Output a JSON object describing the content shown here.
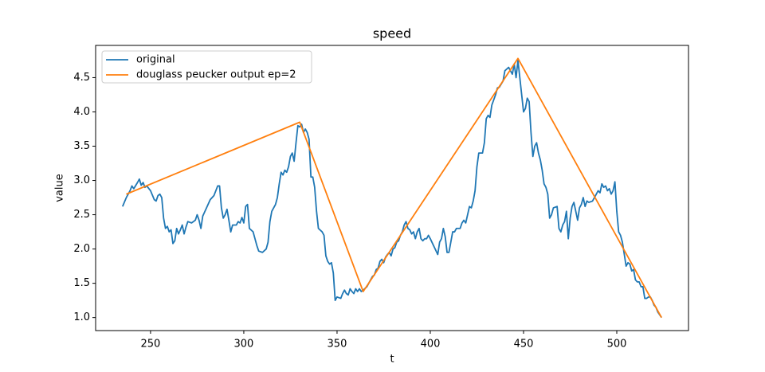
{
  "chart_data": {
    "type": "line",
    "title": "speed",
    "xlabel": "t",
    "ylabel": "value",
    "xlim": [
      220.55,
      538.45
    ],
    "ylim": [
      0.81,
      4.97
    ],
    "xticks": [
      250,
      300,
      350,
      400,
      450,
      500
    ],
    "yticks": [
      {
        "value": 1,
        "label": "1.0"
      },
      1.5,
      {
        "value": 2,
        "label": "2.0"
      },
      2.5,
      {
        "value": 3,
        "label": "3.0"
      },
      3.5,
      {
        "value": 4,
        "label": "4.0"
      },
      4.5
    ],
    "legend": "upper left",
    "grid": false,
    "series": [
      {
        "name": "original",
        "color": "#1f77b4",
        "x": [
          235,
          237,
          239,
          240,
          241,
          243,
          244,
          245,
          246,
          247,
          248,
          250,
          252,
          253,
          254,
          255,
          256,
          257,
          258,
          259,
          260,
          261,
          262,
          263,
          264,
          265,
          266,
          267,
          268,
          269,
          270,
          272,
          274,
          275,
          276,
          277,
          278,
          280,
          282,
          284,
          286,
          287,
          288,
          289,
          290,
          291,
          292,
          293,
          294,
          296,
          297,
          298,
          299,
          300,
          301,
          302,
          303,
          305,
          306,
          307,
          308,
          310,
          312,
          313,
          314,
          315,
          317,
          318,
          319,
          320,
          321,
          322,
          323,
          324,
          325,
          326,
          327,
          328,
          329,
          330,
          331,
          332,
          333,
          334,
          335,
          336,
          337,
          338,
          339,
          340,
          342,
          343,
          344,
          345,
          346,
          347,
          348,
          349,
          350,
          352,
          353,
          354,
          355,
          356,
          357,
          358,
          359,
          360,
          361,
          362,
          363,
          364,
          366,
          368,
          369,
          370,
          371,
          372,
          373,
          374,
          375,
          376,
          377,
          378,
          379,
          380,
          381,
          382,
          383,
          384,
          385,
          386,
          387,
          388,
          389,
          390,
          391,
          392,
          393,
          394,
          395,
          396,
          397,
          398,
          399,
          400,
          404,
          405,
          406,
          407,
          408,
          409,
          410,
          411,
          412,
          413,
          414,
          416,
          417,
          418,
          419,
          421,
          422,
          423,
          424,
          425,
          426,
          428,
          429,
          430,
          431,
          432,
          433,
          435,
          436,
          437,
          439,
          440,
          442,
          443,
          444,
          445,
          446,
          447,
          448,
          450,
          451,
          452,
          453,
          454,
          455,
          456,
          457,
          458,
          459,
          460,
          461,
          462,
          463,
          464,
          465,
          466,
          468,
          469,
          470,
          471,
          472,
          473,
          474,
          475,
          476,
          477,
          479,
          480,
          481,
          482,
          483,
          484,
          485,
          487,
          488,
          490,
          491,
          492,
          493,
          494,
          495,
          496,
          497,
          498,
          499,
          500,
          501,
          502,
          503,
          505,
          506,
          507,
          508,
          509,
          510,
          511,
          512,
          513,
          514,
          515,
          516,
          517,
          518,
          519,
          520,
          521,
          522,
          524
        ],
        "values": [
          2.62,
          2.75,
          2.85,
          2.92,
          2.88,
          2.97,
          3.02,
          2.93,
          2.97,
          2.9,
          2.92,
          2.85,
          2.72,
          2.7,
          2.78,
          2.8,
          2.75,
          2.45,
          2.3,
          2.33,
          2.25,
          2.28,
          2.08,
          2.12,
          2.3,
          2.22,
          2.28,
          2.35,
          2.22,
          2.32,
          2.4,
          2.38,
          2.42,
          2.5,
          2.42,
          2.3,
          2.48,
          2.6,
          2.72,
          2.78,
          2.92,
          2.92,
          2.6,
          2.45,
          2.5,
          2.58,
          2.42,
          2.25,
          2.35,
          2.35,
          2.4,
          2.38,
          2.46,
          2.38,
          2.62,
          2.65,
          2.3,
          2.25,
          2.15,
          2.05,
          1.97,
          1.95,
          2.0,
          2.1,
          2.4,
          2.55,
          2.65,
          2.75,
          2.95,
          3.12,
          3.08,
          3.15,
          3.12,
          3.2,
          3.35,
          3.4,
          3.28,
          3.55,
          3.8,
          3.78,
          3.82,
          3.7,
          3.75,
          3.7,
          3.6,
          3.05,
          3.05,
          2.9,
          2.55,
          2.3,
          2.25,
          2.2,
          1.9,
          1.82,
          1.78,
          1.8,
          1.65,
          1.25,
          1.3,
          1.28,
          1.35,
          1.4,
          1.35,
          1.33,
          1.42,
          1.38,
          1.35,
          1.42,
          1.38,
          1.42,
          1.38,
          1.4,
          1.45,
          1.55,
          1.6,
          1.62,
          1.7,
          1.72,
          1.82,
          1.85,
          1.8,
          1.88,
          1.92,
          1.95,
          1.9,
          2.0,
          2.02,
          2.1,
          2.12,
          2.2,
          2.25,
          2.35,
          2.4,
          2.3,
          2.28,
          2.22,
          2.25,
          2.15,
          2.25,
          2.3,
          2.15,
          2.12,
          2.15,
          2.15,
          2.2,
          2.15,
          1.92,
          2.1,
          2.15,
          2.3,
          2.18,
          1.95,
          1.95,
          2.1,
          2.25,
          2.25,
          2.3,
          2.3,
          2.38,
          2.42,
          2.38,
          2.62,
          2.6,
          2.7,
          2.85,
          3.2,
          3.4,
          3.4,
          3.55,
          3.9,
          3.95,
          3.92,
          4.1,
          4.25,
          4.35,
          4.36,
          4.45,
          4.6,
          4.65,
          4.6,
          4.55,
          4.7,
          4.5,
          4.75,
          4.5,
          4.0,
          4.05,
          4.2,
          4.15,
          3.7,
          3.35,
          3.5,
          3.55,
          3.4,
          3.3,
          3.15,
          2.95,
          2.9,
          2.8,
          2.45,
          2.5,
          2.6,
          2.62,
          2.3,
          2.25,
          2.35,
          2.4,
          2.55,
          2.15,
          2.45,
          2.62,
          2.68,
          2.42,
          2.6,
          2.65,
          2.75,
          2.62,
          2.7,
          2.68,
          2.7,
          2.75,
          2.85,
          2.82,
          2.95,
          2.9,
          2.92,
          2.85,
          2.88,
          2.8,
          2.85,
          2.98,
          2.55,
          2.25,
          2.2,
          2.1,
          1.75,
          1.8,
          1.78,
          1.68,
          1.7,
          1.55,
          1.52,
          1.52,
          1.45,
          1.45,
          1.28,
          1.28,
          1.3,
          1.3,
          1.25,
          1.18,
          1.15,
          1.08,
          1.0
        ]
      },
      {
        "name": "douglass peucker output ep=2",
        "color": "#ff7f0e",
        "x": [
          237,
          330,
          364,
          447,
          524
        ],
        "values": [
          2.8,
          3.85,
          1.38,
          4.78,
          1.0
        ]
      }
    ]
  }
}
